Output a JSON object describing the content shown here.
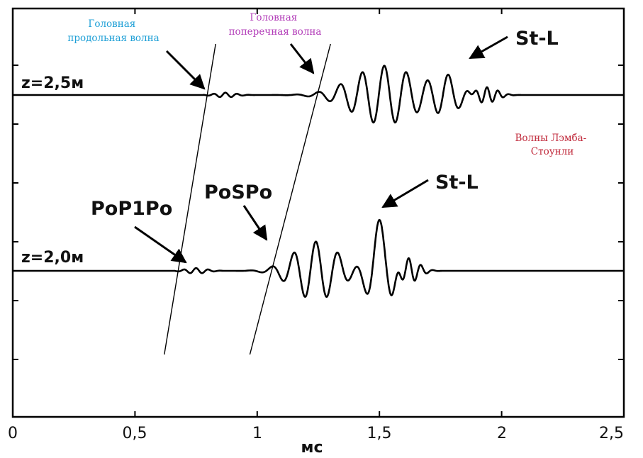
{
  "chart_data": {
    "type": "line",
    "xlabel": "мс",
    "xlim": [
      0,
      2.5
    ],
    "x_ticks": [
      {
        "value": 0,
        "label": "0"
      },
      {
        "value": 0.5,
        "label": "0,5"
      },
      {
        "value": 1,
        "label": "1"
      },
      {
        "value": 1.5,
        "label": "1,5"
      },
      {
        "value": 2,
        "label": "2"
      },
      {
        "value": 2.5,
        "label": "2,5"
      }
    ],
    "grid": false,
    "series": [
      {
        "name": "z=2,5м",
        "waveform": {
          "onset": 0.78,
          "components": [
            {
              "center": 0.87,
              "width": 0.06,
              "amplitude": 0.06,
              "period": 0.048
            },
            {
              "center": 1.52,
              "width": 0.18,
              "amplitude": 0.75,
              "period": 0.09
            },
            {
              "center": 1.78,
              "width": 0.07,
              "amplitude": 0.45,
              "period": 0.09
            },
            {
              "center": 1.94,
              "width": 0.06,
              "amplitude": 0.2,
              "period": 0.045
            }
          ]
        }
      },
      {
        "name": "z=2,0м",
        "waveform": {
          "onset": 0.66,
          "components": [
            {
              "center": 0.75,
              "width": 0.06,
              "amplitude": 0.07,
              "period": 0.05
            },
            {
              "center": 1.24,
              "width": 0.13,
              "amplitude": 0.75,
              "period": 0.09
            },
            {
              "center": 1.5,
              "width": 0.06,
              "amplitude": 1.3,
              "period": 0.12
            },
            {
              "center": 1.62,
              "width": 0.06,
              "amplitude": 0.3,
              "period": 0.05
            }
          ]
        }
      }
    ],
    "moveout_lines": [
      {
        "name": "PoP1Po",
        "x_start": 0.62,
        "x_end": 0.83
      },
      {
        "name": "PoSPo",
        "x_start": 0.97,
        "x_end": 1.3
      }
    ],
    "annotations": [
      {
        "text": "Головная продольная волна",
        "color": "#1e9fd6"
      },
      {
        "text": "Головная поперечная волна",
        "color": "#b23cb8"
      },
      {
        "text": "St-L"
      },
      {
        "text": "St-L"
      },
      {
        "text": "PoP1Po"
      },
      {
        "text": "PoSPo"
      },
      {
        "text": "Волны Лэмба-Стоунли",
        "color": "#c0283a"
      }
    ]
  },
  "colors": {
    "trace": "#000000",
    "axis": "#000000",
    "background": "#ffffff"
  }
}
